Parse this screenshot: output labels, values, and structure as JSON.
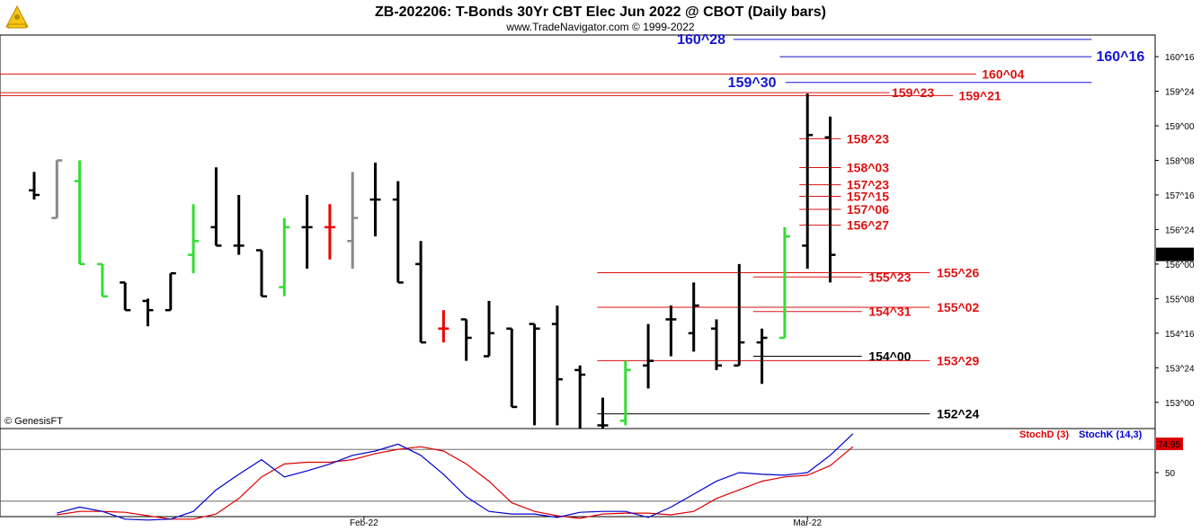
{
  "header": {
    "title": "ZB-202206:  T-Bonds 30Yr CBT Elec Jun 2022 @ CBOT  (Daily bars)",
    "subtitle": "www.TradeNavigator.com © 1999-2022",
    "watermark": "© GenesisFT"
  },
  "colors": {
    "up": "#33dd33",
    "down": "#000000",
    "gray": "#888888",
    "red_bar": "#ee0000",
    "level_red": "#dd1111",
    "level_blue": "#1515cc",
    "level_black": "#000000",
    "stoch_d": "#dd0000",
    "stoch_k": "#0000cc"
  },
  "chart_data": [
    {
      "type": "ohlc",
      "title": "ZB-202206:  T-Bonds 30Yr CBT Elec Jun 2022 @ CBOT  (Daily bars)",
      "price_unit": "32nds",
      "y_ticks": [
        "160^16",
        "159^24",
        "159^00",
        "158^08",
        "157^16",
        "156^24",
        "156^00",
        "155^08",
        "154^16",
        "153^24",
        "153^00"
      ],
      "y_tick_values": [
        160.5,
        159.75,
        159.0,
        158.25,
        157.5,
        156.75,
        156.0,
        155.25,
        154.5,
        153.75,
        153.0
      ],
      "ylim": [
        152.45,
        160.95
      ],
      "x_labels": [
        {
          "label": "Feb-22",
          "bar": 14.5
        },
        {
          "label": "Mar-22",
          "bar": 34
        }
      ],
      "last_price_label": "156^06",
      "bars": [
        {
          "o": 157.6,
          "h": 158.0,
          "l": 157.4,
          "c": 157.5,
          "color": "black"
        },
        {
          "o": 157.0,
          "h": 158.25,
          "l": 157.0,
          "c": 158.25,
          "color": "gray"
        },
        {
          "o": 157.8,
          "h": 158.25,
          "l": 156.0,
          "c": 156.0,
          "color": "up"
        },
        {
          "o": 156.0,
          "h": 156.0,
          "l": 155.3,
          "c": 155.3,
          "color": "up"
        },
        {
          "o": 155.6,
          "h": 155.6,
          "l": 155.0,
          "c": 155.0,
          "color": "black"
        },
        {
          "o": 155.2,
          "h": 155.25,
          "l": 154.65,
          "c": 155.0,
          "color": "black"
        },
        {
          "o": 155.0,
          "h": 155.8,
          "l": 155.0,
          "c": 155.8,
          "color": "black"
        },
        {
          "o": 156.2,
          "h": 157.3,
          "l": 155.8,
          "c": 156.5,
          "color": "up"
        },
        {
          "o": 156.8,
          "h": 158.1,
          "l": 156.4,
          "c": 156.4,
          "color": "black"
        },
        {
          "o": 156.4,
          "h": 157.5,
          "l": 156.2,
          "c": 156.4,
          "color": "black"
        },
        {
          "o": 156.3,
          "h": 156.3,
          "l": 155.3,
          "c": 155.3,
          "color": "black"
        },
        {
          "o": 155.5,
          "h": 157.0,
          "l": 155.3,
          "c": 156.8,
          "color": "up"
        },
        {
          "o": 156.8,
          "h": 157.5,
          "l": 155.9,
          "c": 156.8,
          "color": "black"
        },
        {
          "o": 156.8,
          "h": 157.3,
          "l": 156.1,
          "c": 156.8,
          "color": "red_bar"
        },
        {
          "o": 156.5,
          "h": 158.0,
          "l": 155.9,
          "c": 157.0,
          "color": "gray"
        },
        {
          "o": 157.4,
          "h": 158.2,
          "l": 156.6,
          "c": 157.4,
          "color": "black"
        },
        {
          "o": 157.4,
          "h": 157.8,
          "l": 155.6,
          "c": 155.6,
          "color": "black"
        },
        {
          "o": 156.0,
          "h": 156.5,
          "l": 154.3,
          "c": 154.3,
          "color": "black"
        },
        {
          "o": 154.6,
          "h": 155.0,
          "l": 154.3,
          "c": 154.6,
          "color": "red_bar"
        },
        {
          "o": 154.8,
          "h": 154.8,
          "l": 153.9,
          "c": 154.4,
          "color": "black"
        },
        {
          "o": 154.0,
          "h": 155.2,
          "l": 154.0,
          "c": 154.5,
          "color": "black"
        },
        {
          "o": 154.6,
          "h": 154.6,
          "l": 152.9,
          "c": 152.9,
          "color": "black"
        },
        {
          "o": 154.7,
          "h": 154.7,
          "l": 152.5,
          "c": 154.6,
          "color": "black"
        },
        {
          "o": 154.7,
          "h": 155.1,
          "l": 152.5,
          "c": 153.5,
          "color": "black"
        },
        {
          "o": 153.7,
          "h": 153.8,
          "l": 152.4,
          "c": 153.6,
          "color": "black"
        },
        {
          "o": 152.5,
          "h": 153.1,
          "l": 152.4,
          "c": 152.5,
          "color": "black"
        },
        {
          "o": 152.6,
          "h": 153.9,
          "l": 152.5,
          "c": 153.7,
          "color": "up"
        },
        {
          "o": 153.8,
          "h": 154.7,
          "l": 153.3,
          "c": 153.9,
          "color": "black"
        },
        {
          "o": 154.8,
          "h": 155.1,
          "l": 154.0,
          "c": 154.8,
          "color": "black"
        },
        {
          "o": 154.5,
          "h": 155.6,
          "l": 154.1,
          "c": 155.1,
          "color": "black"
        },
        {
          "o": 154.6,
          "h": 154.8,
          "l": 153.7,
          "c": 153.8,
          "color": "black"
        },
        {
          "o": 153.8,
          "h": 156.0,
          "l": 153.8,
          "c": 154.3,
          "color": "black"
        },
        {
          "o": 154.3,
          "h": 154.6,
          "l": 153.4,
          "c": 154.4,
          "color": "black"
        },
        {
          "o": 154.4,
          "h": 156.8,
          "l": 154.4,
          "c": 156.6,
          "color": "up"
        },
        {
          "o": 156.4,
          "h": 159.7,
          "l": 155.9,
          "c": 158.8,
          "color": "black"
        },
        {
          "o": 158.75,
          "h": 159.2,
          "l": 155.6,
          "c": 156.2,
          "color": "black"
        }
      ],
      "levels": [
        {
          "label": "160^28",
          "price": 160.875,
          "color": "level_blue",
          "size": "big",
          "x1": 0.635,
          "x2": 0.945,
          "text_x": 0.628,
          "anchor": "end"
        },
        {
          "label": "160^16",
          "price": 160.5,
          "color": "level_blue",
          "size": "big",
          "x1": 0.675,
          "x2": 0.945,
          "text_x": 0.949,
          "anchor": "start"
        },
        {
          "label": "160^04",
          "price": 160.125,
          "color": "level_red",
          "size": "norm",
          "x1": 0.0,
          "x2": 0.845,
          "text_x": 0.85,
          "anchor": "start"
        },
        {
          "label": "159^30",
          "price": 159.94,
          "color": "level_blue",
          "size": "big",
          "x1": 0.68,
          "x2": 0.945,
          "text_x": 0.672,
          "anchor": "end"
        },
        {
          "label": "159^23",
          "price": 159.72,
          "color": "level_red",
          "size": "norm",
          "x1": 0.0,
          "x2": 0.77,
          "text_x": 0.772,
          "anchor": "start"
        },
        {
          "label": "159^21",
          "price": 159.656,
          "color": "level_red",
          "size": "norm",
          "x1": 0.0,
          "x2": 0.825,
          "text_x": 0.83,
          "anchor": "start"
        },
        {
          "label": "158^23",
          "price": 158.72,
          "color": "level_red",
          "size": "norm",
          "x1": 0.692,
          "x2": 0.728,
          "text_x": 0.733,
          "anchor": "start"
        },
        {
          "label": "158^03",
          "price": 158.094,
          "color": "level_red",
          "size": "norm",
          "x1": 0.692,
          "x2": 0.728,
          "text_x": 0.733,
          "anchor": "start"
        },
        {
          "label": "157^23",
          "price": 157.72,
          "color": "level_red",
          "size": "norm",
          "x1": 0.692,
          "x2": 0.728,
          "text_x": 0.733,
          "anchor": "start"
        },
        {
          "label": "157^15",
          "price": 157.469,
          "color": "level_red",
          "size": "norm",
          "x1": 0.692,
          "x2": 0.728,
          "text_x": 0.733,
          "anchor": "start"
        },
        {
          "label": "157^06",
          "price": 157.188,
          "color": "level_red",
          "size": "norm",
          "x1": 0.692,
          "x2": 0.728,
          "text_x": 0.733,
          "anchor": "start"
        },
        {
          "label": "156^27",
          "price": 156.844,
          "color": "level_red",
          "size": "norm",
          "x1": 0.692,
          "x2": 0.728,
          "text_x": 0.733,
          "anchor": "start"
        },
        {
          "label": "155^26",
          "price": 155.8125,
          "color": "level_red",
          "size": "norm",
          "x1": 0.517,
          "x2": 0.805,
          "text_x": 0.811,
          "anchor": "start"
        },
        {
          "label": "155^23",
          "price": 155.72,
          "color": "level_red",
          "size": "norm",
          "x1": 0.652,
          "x2": 0.746,
          "text_x": 0.752,
          "anchor": "start"
        },
        {
          "label": "155^02",
          "price": 155.0625,
          "color": "level_red",
          "size": "norm",
          "x1": 0.517,
          "x2": 0.805,
          "text_x": 0.811,
          "anchor": "start"
        },
        {
          "label": "154^31",
          "price": 154.97,
          "color": "level_red",
          "size": "norm",
          "x1": 0.652,
          "x2": 0.746,
          "text_x": 0.752,
          "anchor": "start"
        },
        {
          "label": "154^00",
          "price": 154.0,
          "color": "level_black",
          "size": "norm",
          "x1": 0.652,
          "x2": 0.746,
          "text_x": 0.752,
          "anchor": "start"
        },
        {
          "label": "153^29",
          "price": 153.906,
          "color": "level_red",
          "size": "norm",
          "x1": 0.517,
          "x2": 0.805,
          "text_x": 0.811,
          "anchor": "start"
        },
        {
          "label": "152^24",
          "price": 152.75,
          "color": "level_black",
          "size": "norm",
          "x1": 0.517,
          "x2": 0.805,
          "text_x": 0.811,
          "anchor": "start"
        }
      ]
    },
    {
      "type": "line",
      "title": "",
      "ylim": [
        0,
        100
      ],
      "y_ticks": [
        "50"
      ],
      "y_tick_values": [
        50
      ],
      "ref_lines": [
        80,
        20
      ],
      "last_value_label": "74.95",
      "series": [
        {
          "name": "StochD (3)",
          "color_key": "stoch_d",
          "values": [
            null,
            1,
            5,
            5,
            4,
            0,
            -4,
            -4,
            2,
            20,
            45,
            60,
            62,
            62,
            65,
            72,
            77,
            80,
            75,
            60,
            40,
            15,
            5,
            0,
            -3,
            2,
            3,
            3,
            1,
            5,
            20,
            30,
            40,
            45,
            47,
            58,
            80
          ]
        },
        {
          "name": "StochK (14,3)",
          "color_key": "stoch_k",
          "values": [
            null,
            3,
            10,
            5,
            -4,
            -5,
            -4,
            5,
            30,
            48,
            65,
            45,
            52,
            60,
            70,
            75,
            83,
            70,
            48,
            22,
            5,
            2,
            2,
            -2,
            4,
            5,
            5,
            -2,
            10,
            25,
            40,
            50,
            48,
            47,
            50,
            70,
            95
          ]
        }
      ]
    }
  ]
}
